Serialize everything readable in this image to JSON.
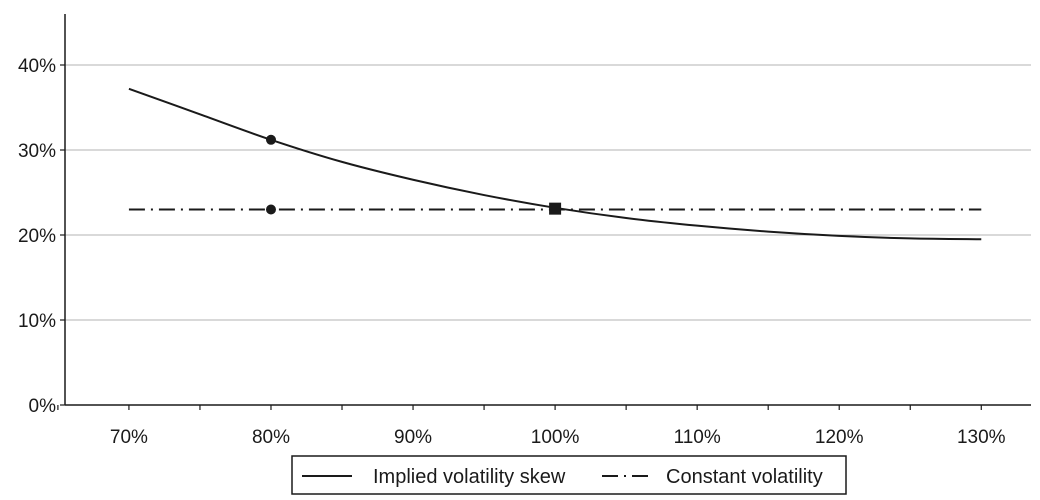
{
  "chart_data": {
    "type": "line",
    "title": "",
    "xlabel": "",
    "ylabel": "",
    "x": [
      0.7,
      0.75,
      0.8,
      0.85,
      0.9,
      0.95,
      1.0,
      1.05,
      1.1,
      1.15,
      1.2,
      1.25,
      1.3
    ],
    "x_ticks": [
      0.7,
      0.8,
      0.9,
      1.0,
      1.1,
      1.2,
      1.3
    ],
    "x_tick_labels": [
      "70%",
      "80%",
      "90%",
      "100%",
      "110%",
      "120%",
      "130%"
    ],
    "xlim": [
      0.655,
      1.335
    ],
    "y_ticks": [
      0,
      0.1,
      0.2,
      0.3,
      0.4
    ],
    "y_tick_labels": [
      "0%",
      "10%",
      "20%",
      "30%",
      "40%"
    ],
    "ylim": [
      0,
      0.46
    ],
    "grid": "horizontal",
    "legend_position": "bottom-center",
    "series": [
      {
        "name": "Implied volatility skew",
        "style": "solid",
        "color": "#1a1a1a",
        "values": [
          0.372,
          0.342,
          0.312,
          0.286,
          0.265,
          0.247,
          0.232,
          0.22,
          0.211,
          0.204,
          0.199,
          0.196,
          0.195
        ]
      },
      {
        "name": "Constant volatility",
        "style": "dashed",
        "color": "#1a1a1a",
        "values": [
          0.23,
          0.23,
          0.23,
          0.23,
          0.23,
          0.23,
          0.23,
          0.23,
          0.23,
          0.23,
          0.23,
          0.23,
          0.23
        ]
      }
    ],
    "markers": [
      {
        "shape": "circle",
        "x": 0.8,
        "y": 0.312
      },
      {
        "shape": "circle",
        "x": 0.8,
        "y": 0.23
      },
      {
        "shape": "square",
        "x": 1.0,
        "y": 0.231
      }
    ]
  }
}
